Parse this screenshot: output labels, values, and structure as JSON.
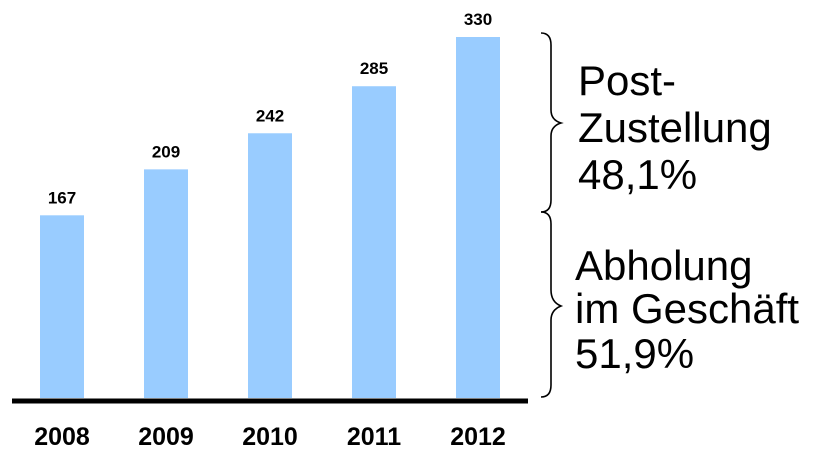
{
  "chart_data": {
    "type": "bar",
    "categories": [
      "2008",
      "2009",
      "2010",
      "2011",
      "2012"
    ],
    "values": [
      167,
      209,
      242,
      285,
      330
    ],
    "title": "",
    "xlabel": "",
    "ylabel": "",
    "ylim": [
      0,
      330
    ],
    "grid": false,
    "legend": "none",
    "colors": {
      "bar": "#99ccff",
      "axis": "#000000",
      "text": "#000000"
    },
    "annotations": [
      {
        "name": "post-zustellung",
        "lines": [
          "Post-",
          "Zustellung",
          "48,1%"
        ]
      },
      {
        "name": "abholung",
        "lines": [
          "Abholung",
          "im Geschäft",
          "51,9%"
        ]
      }
    ]
  }
}
